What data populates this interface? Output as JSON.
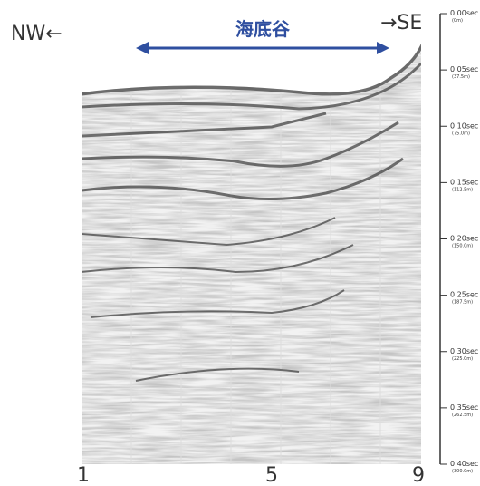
{
  "header": {
    "left": "NW←",
    "center": "海底谷",
    "right": "→SE"
  },
  "depth_axis": [
    {
      "time": "0.00sec",
      "depth": "(0m)"
    },
    {
      "time": "0.05sec",
      "depth": "(37.5m)"
    },
    {
      "time": "0.10sec",
      "depth": "(75.0m)"
    },
    {
      "time": "0.15sec",
      "depth": "(112.5m)"
    },
    {
      "time": "0.20sec",
      "depth": "(150.0m)"
    },
    {
      "time": "0.25sec",
      "depth": "(187.5m)"
    },
    {
      "time": "0.30sec",
      "depth": "(225.0m)"
    },
    {
      "time": "0.35sec",
      "depth": "(262.5m)"
    },
    {
      "time": "0.40sec",
      "depth": "(300.0m)"
    }
  ],
  "stations": [
    "1",
    "5",
    "9"
  ]
}
